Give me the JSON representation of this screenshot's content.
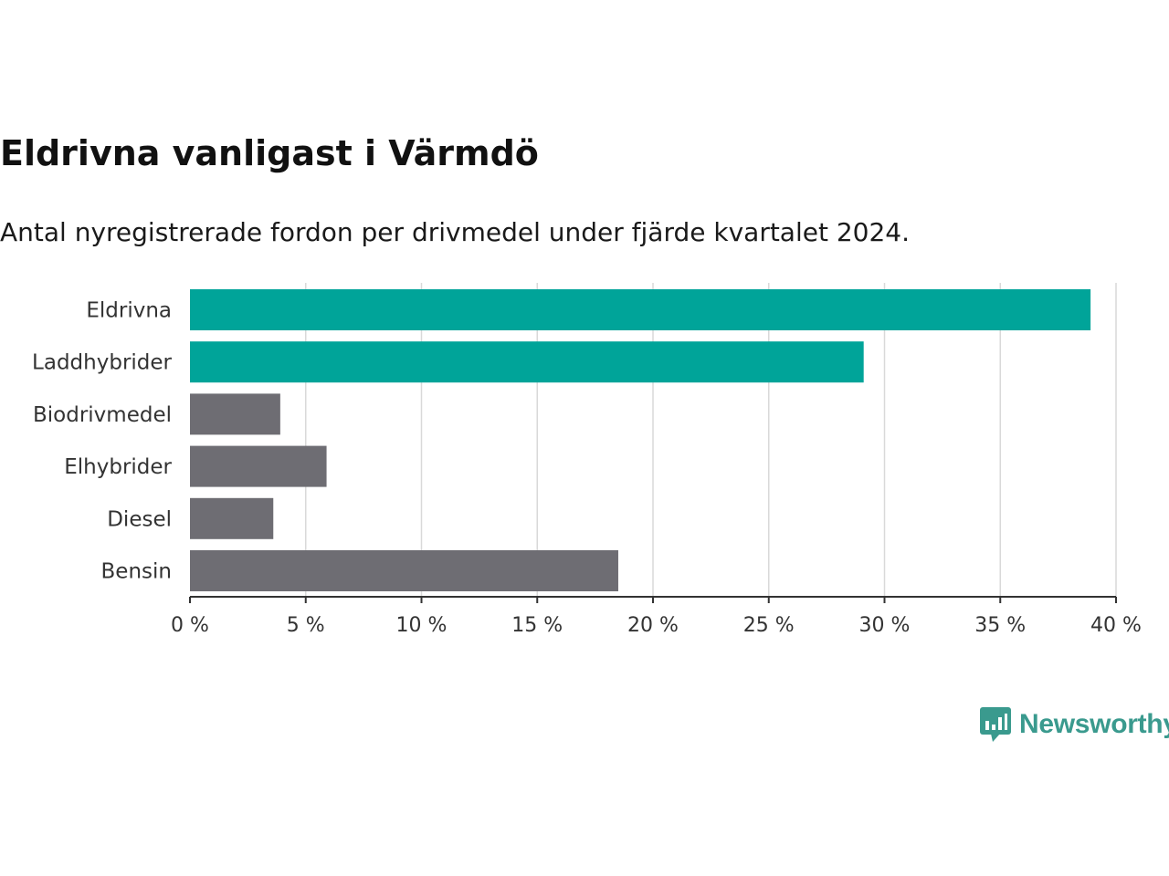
{
  "title": "Eldrivna vanligast i Värmdö",
  "subtitle": "Antal nyregistrerade fordon per drivmedel under fjärde kvartalet 2024.",
  "brand": {
    "name": "Newsworthy",
    "icon": "newsworthy-logo-icon",
    "color": "#3a9a8e"
  },
  "chart_data": {
    "type": "bar",
    "orientation": "horizontal",
    "title": "Eldrivna vanligast i Värmdö",
    "subtitle": "Antal nyregistrerade fordon per drivmedel under fjärde kvartalet 2024.",
    "xlabel": "",
    "ylabel": "",
    "categories": [
      "Eldrivna",
      "Laddhybrider",
      "Biodrivmedel",
      "Elhybrider",
      "Diesel",
      "Bensin"
    ],
    "values": [
      38.9,
      29.1,
      3.9,
      5.9,
      3.6,
      18.5
    ],
    "highlighted": [
      true,
      true,
      false,
      false,
      false,
      false
    ],
    "colors": {
      "highlight": "#00a499",
      "default": "#6e6d73",
      "grid": "#d9d9d9",
      "axis": "#333333"
    },
    "xlim": [
      0,
      40
    ],
    "xticks": [
      0,
      5,
      10,
      15,
      20,
      25,
      30,
      35,
      40
    ],
    "xtick_labels": [
      "0 %",
      "5 %",
      "10 %",
      "15 %",
      "20 %",
      "25 %",
      "30 %",
      "35 %",
      "40 %"
    ],
    "grid": true,
    "legend": "none"
  }
}
